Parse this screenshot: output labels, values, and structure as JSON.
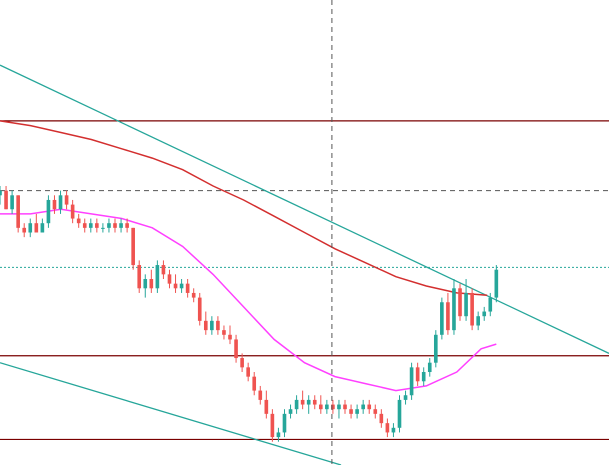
{
  "colors": {
    "background": "#ffffff",
    "bull_candle": "#26a69a",
    "bear_candle": "#ef5350",
    "ma_slow": "#d32f2f",
    "ma_fast": "#ff40ff",
    "trendline": "#26a69a",
    "horizontal_level": "#7a0000",
    "dashed_level": "#555555",
    "price_line": "#26a69a",
    "crosshair": "#555555"
  },
  "chart_data": {
    "type": "candlestick",
    "ylim": [
      0,
      100
    ],
    "xlim": [
      0,
      100
    ],
    "horizontal_levels": [
      74,
      23.5,
      5.5
    ],
    "dashed_level": 59,
    "price_line": 42.5,
    "crosshair_x": 54.5,
    "trendlines": [
      {
        "x1": 0,
        "y1": 86,
        "x2": 100,
        "y2": 24
      },
      {
        "x1": 0,
        "y1": 22,
        "x2": 56,
        "y2": 0
      }
    ],
    "ma_slow": [
      [
        0,
        74
      ],
      [
        5,
        73
      ],
      [
        10,
        71.5
      ],
      [
        15,
        70
      ],
      [
        20,
        68
      ],
      [
        25,
        66
      ],
      [
        30,
        63.5
      ],
      [
        35,
        60
      ],
      [
        40,
        57
      ],
      [
        45,
        53.5
      ],
      [
        50,
        50
      ],
      [
        55,
        46.5
      ],
      [
        60,
        43.5
      ],
      [
        65,
        40.5
      ],
      [
        70,
        38.5
      ],
      [
        75,
        37
      ],
      [
        80,
        36.5
      ]
    ],
    "ma_fast": [
      [
        0,
        54
      ],
      [
        5,
        54
      ],
      [
        10,
        55
      ],
      [
        15,
        54
      ],
      [
        20,
        53
      ],
      [
        25,
        51
      ],
      [
        30,
        47
      ],
      [
        35,
        41
      ],
      [
        40,
        34
      ],
      [
        45,
        27
      ],
      [
        50,
        22
      ],
      [
        55,
        19
      ],
      [
        60,
        17.5
      ],
      [
        65,
        16
      ],
      [
        70,
        17
      ],
      [
        75,
        20
      ],
      [
        79,
        25
      ],
      [
        81.5,
        26
      ]
    ],
    "candles": [
      [
        0,
        58,
        60,
        56,
        59
      ],
      [
        1,
        59,
        60,
        55,
        55
      ],
      [
        2,
        55,
        59,
        54,
        58
      ],
      [
        3,
        58,
        58,
        50,
        51
      ],
      [
        4,
        51,
        52,
        49,
        50
      ],
      [
        5,
        50,
        53,
        49,
        52
      ],
      [
        6,
        52,
        54,
        50,
        50
      ],
      [
        7,
        50,
        53,
        50,
        52
      ],
      [
        8,
        52,
        58,
        51,
        57
      ],
      [
        9,
        57,
        58,
        54,
        55
      ],
      [
        10,
        55,
        59,
        54,
        58
      ],
      [
        11,
        58,
        59,
        55,
        56
      ],
      [
        12,
        56,
        57,
        52,
        53
      ],
      [
        13,
        53,
        54,
        51,
        52
      ],
      [
        14,
        52,
        53,
        50,
        51
      ],
      [
        15,
        51,
        53,
        50,
        52
      ],
      [
        16,
        52,
        53,
        50,
        51
      ],
      [
        17,
        51,
        52,
        50,
        51
      ],
      [
        18,
        51,
        53,
        50,
        52
      ],
      [
        19,
        52,
        53,
        50,
        51
      ],
      [
        20,
        51,
        53,
        50,
        52
      ],
      [
        21,
        52,
        53,
        50,
        51
      ],
      [
        22,
        51,
        51,
        42,
        43
      ],
      [
        23,
        43,
        44,
        37,
        38
      ],
      [
        24,
        38,
        41,
        36,
        40
      ],
      [
        25,
        40,
        42,
        37,
        38
      ],
      [
        26,
        38,
        44,
        37,
        43
      ],
      [
        27,
        43,
        44,
        40,
        41
      ],
      [
        28,
        41,
        42,
        38,
        39
      ],
      [
        29,
        39,
        41,
        37,
        38
      ],
      [
        30,
        38,
        40,
        37,
        39
      ],
      [
        31,
        39,
        40,
        36,
        37
      ],
      [
        32,
        37,
        38,
        35,
        36
      ],
      [
        33,
        36,
        37,
        30,
        31
      ],
      [
        34,
        31,
        33,
        28,
        29
      ],
      [
        35,
        29,
        32,
        28,
        31
      ],
      [
        36,
        31,
        32,
        28,
        29
      ],
      [
        37,
        29,
        30,
        27,
        28
      ],
      [
        38,
        28,
        30,
        26,
        27
      ],
      [
        39,
        27,
        28,
        22,
        23
      ],
      [
        40,
        23,
        24,
        20,
        21
      ],
      [
        41,
        21,
        22,
        18,
        19
      ],
      [
        42,
        19,
        20,
        15,
        16
      ],
      [
        43,
        16,
        17,
        13,
        14
      ],
      [
        44,
        14,
        16,
        10,
        11
      ],
      [
        45,
        11,
        12,
        5,
        6
      ],
      [
        46,
        6,
        8,
        5,
        7
      ],
      [
        47,
        7,
        12,
        6,
        11
      ],
      [
        48,
        11,
        13,
        10,
        12
      ],
      [
        49,
        12,
        15,
        11,
        14
      ],
      [
        50,
        14,
        16,
        12,
        13
      ],
      [
        51,
        13,
        15,
        11,
        14
      ],
      [
        52,
        14,
        15,
        12,
        13
      ],
      [
        53,
        13,
        15,
        11,
        12
      ],
      [
        54,
        12,
        14,
        11,
        13
      ],
      [
        55,
        13,
        14,
        11,
        12
      ],
      [
        56,
        12,
        14,
        10,
        13
      ],
      [
        57,
        13,
        14,
        11,
        12
      ],
      [
        58,
        12,
        13,
        10,
        11
      ],
      [
        59,
        11,
        13,
        10,
        12
      ],
      [
        60,
        12,
        14,
        11,
        13
      ],
      [
        61,
        13,
        14,
        11,
        12
      ],
      [
        62,
        12,
        13,
        10,
        11
      ],
      [
        63,
        11,
        12,
        8,
        9
      ],
      [
        64,
        9,
        10,
        6,
        7
      ],
      [
        65,
        7,
        9,
        6,
        8
      ],
      [
        66,
        8,
        15,
        7,
        14
      ],
      [
        67,
        14,
        16,
        13,
        15
      ],
      [
        68,
        15,
        22,
        14,
        21
      ],
      [
        69,
        21,
        22,
        17,
        18
      ],
      [
        70,
        18,
        21,
        17,
        20
      ],
      [
        71,
        20,
        23,
        19,
        22
      ],
      [
        72,
        22,
        29,
        21,
        28
      ],
      [
        73,
        28,
        36,
        27,
        35
      ],
      [
        74,
        35,
        37,
        28,
        29
      ],
      [
        75,
        29,
        40,
        28,
        38
      ],
      [
        76,
        38,
        39,
        31,
        32
      ],
      [
        77,
        32,
        40,
        31,
        37
      ],
      [
        78,
        37,
        38,
        29,
        30
      ],
      [
        79,
        30,
        33,
        29,
        32
      ],
      [
        80,
        32,
        34,
        31,
        33
      ],
      [
        81,
        33,
        37,
        32,
        36
      ],
      [
        82,
        36,
        43,
        35,
        42
      ]
    ]
  }
}
